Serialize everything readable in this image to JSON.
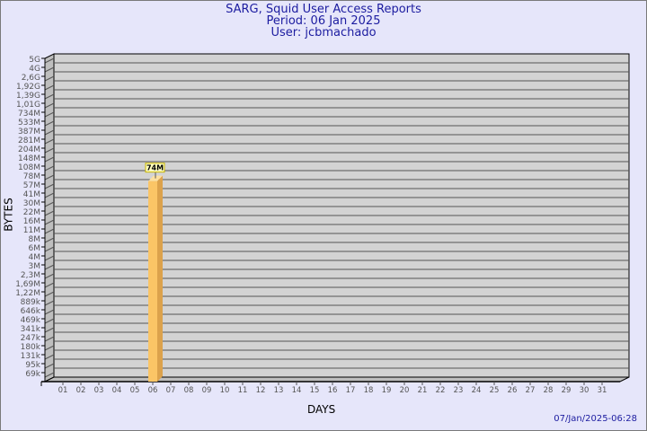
{
  "header": {
    "title": "SARG, Squid User Access Reports",
    "period": "Period: 06 Jan 2025",
    "user": "User: jcbmachado"
  },
  "timestamp": "07/Jan/2025-06:28",
  "colors": {
    "background": "#e6e6fa",
    "plot": "#d3d3d3",
    "bar_front": "#fbc566",
    "bar_side": "#dca24c",
    "title": "#1c1ca0"
  },
  "chart_data": {
    "type": "bar",
    "title": "SARG, Squid User Access Reports",
    "xlabel": "DAYS",
    "ylabel": "BYTES",
    "yscale": "log",
    "grid": true,
    "ytick_labels": [
      "5G",
      "4G",
      "2,6G",
      "1,92G",
      "1,39G",
      "1,01G",
      "734M",
      "533M",
      "387M",
      "281M",
      "204M",
      "148M",
      "108M",
      "78M",
      "57M",
      "41M",
      "30M",
      "22M",
      "16M",
      "11M",
      "8M",
      "6M",
      "4M",
      "3M",
      "2,3M",
      "1,69M",
      "1,22M",
      "889k",
      "646k",
      "469k",
      "341k",
      "247k",
      "180k",
      "131k",
      "95k",
      "69k"
    ],
    "categories": [
      "01",
      "02",
      "03",
      "04",
      "05",
      "06",
      "07",
      "08",
      "09",
      "10",
      "11",
      "12",
      "13",
      "14",
      "15",
      "16",
      "17",
      "18",
      "19",
      "20",
      "21",
      "22",
      "23",
      "24",
      "25",
      "26",
      "27",
      "28",
      "29",
      "30",
      "31"
    ],
    "series": [
      {
        "points": [
          {
            "day": "06",
            "value": "74M",
            "label": "74M"
          }
        ]
      }
    ]
  }
}
